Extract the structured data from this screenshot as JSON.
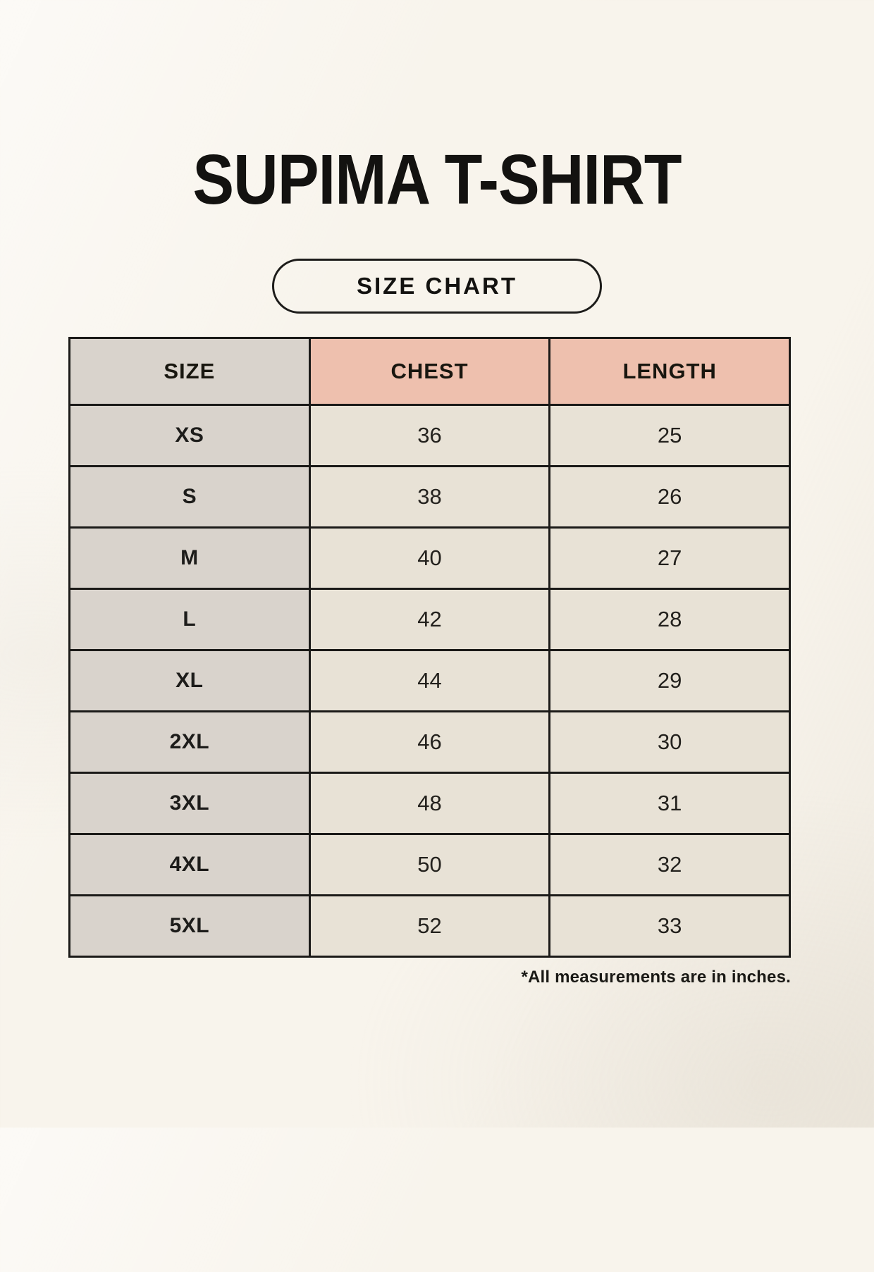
{
  "page": {
    "title": "SUPIMA T-SHIRT",
    "badge_label": "SIZE CHART",
    "footnote": "*All measurements are in inches."
  },
  "chart_data": {
    "type": "table",
    "title": "SUPIMA T-SHIRT",
    "subtitle": "SIZE CHART",
    "columns": [
      "SIZE",
      "CHEST",
      "LENGTH"
    ],
    "rows": [
      {
        "size": "XS",
        "chest": "36",
        "length": "25"
      },
      {
        "size": "S",
        "chest": "38",
        "length": "26"
      },
      {
        "size": "M",
        "chest": "40",
        "length": "27"
      },
      {
        "size": "L",
        "chest": "42",
        "length": "28"
      },
      {
        "size": "XL",
        "chest": "44",
        "length": "29"
      },
      {
        "size": "2XL",
        "chest": "46",
        "length": "30"
      },
      {
        "size": "3XL",
        "chest": "48",
        "length": "31"
      },
      {
        "size": "4XL",
        "chest": "50",
        "length": "32"
      },
      {
        "size": "5XL",
        "chest": "52",
        "length": "33"
      }
    ],
    "note": "*All measurements are in inches.",
    "units": "inches"
  },
  "colors": {
    "background": "#f8f4ec",
    "header_accent": "#eec0ae",
    "size_column": "#d9d3cc",
    "value_cell": "#e8e2d6",
    "border": "#1b1a18",
    "text": "#131210"
  }
}
